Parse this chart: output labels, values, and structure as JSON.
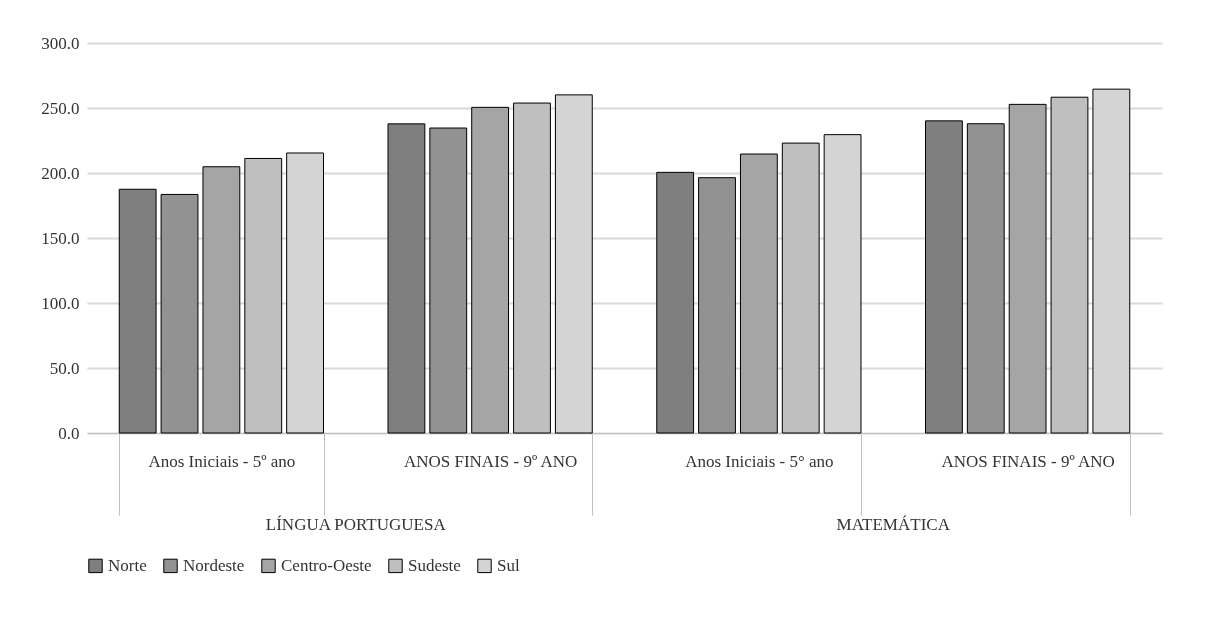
{
  "chart_data": {
    "type": "bar",
    "categories": [
      "Anos Iniciais - 5º ano",
      "ANOS FINAIS  - 9º ANO",
      "Anos Iniciais - 5° ano",
      "ANOS FINAIS  - 9º ANO"
    ],
    "series": [
      {
        "name": "Norte",
        "color": "#7f7f7f",
        "values": [
          187.5,
          237.8,
          200.5,
          240.1
        ]
      },
      {
        "name": "Nordeste",
        "color": "#929292",
        "values": [
          183.5,
          234.6,
          196.4,
          237.9
        ]
      },
      {
        "name": "Centro-Oeste",
        "color": "#a5a5a5",
        "values": [
          204.8,
          250.5,
          214.6,
          252.8
        ]
      },
      {
        "name": "Sudeste",
        "color": "#bfbfbf",
        "values": [
          211.2,
          253.8,
          223.0,
          258.3
        ]
      },
      {
        "name": "Sul",
        "color": "#d4d4d4",
        "values": [
          215.4,
          260.1,
          229.5,
          264.5
        ]
      }
    ],
    "annotations": [
      "LÍNGUA PORTUGUESA",
      "MATEMÁTICA"
    ],
    "ylim": [
      0,
      300
    ],
    "yticks": [
      {
        "value": 0,
        "label": "0.0"
      },
      {
        "value": 50,
        "label": "50.0"
      },
      {
        "value": 100,
        "label": "100.0"
      },
      {
        "value": 150,
        "label": "150.0"
      },
      {
        "value": 200,
        "label": "200.0"
      },
      {
        "value": 250,
        "label": "250.0"
      },
      {
        "value": 300,
        "label": "300.0"
      }
    ],
    "grid": "y",
    "legend": "bottom"
  }
}
